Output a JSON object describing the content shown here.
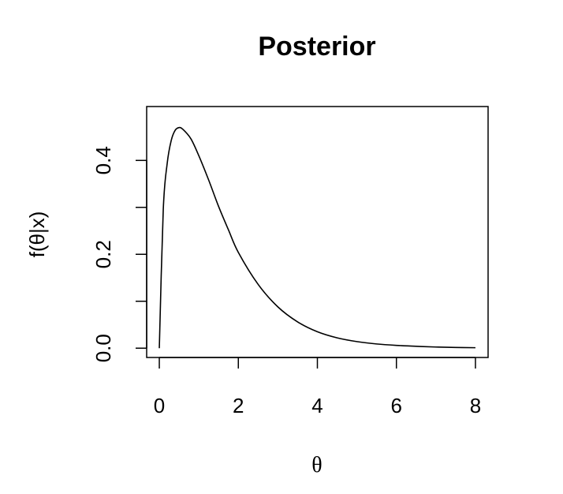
{
  "chart_data": {
    "type": "line",
    "title": "Posterior",
    "xlabel": "θ",
    "ylabel": "f(θ|x)",
    "xlim": [
      -0.32,
      8.32
    ],
    "ylim": [
      -0.0198,
      0.5148
    ],
    "x_ticks": [
      0,
      2,
      4,
      6,
      8
    ],
    "x_tick_labels": [
      "0",
      "2",
      "4",
      "6",
      "8"
    ],
    "y_ticks": [
      0.0,
      0.1,
      0.2,
      0.3,
      0.4
    ],
    "y_tick_labels": [
      "0.0",
      "",
      "0.2",
      "",
      "0.4"
    ],
    "grid": false,
    "series": [
      {
        "x": [
          0,
          0.1,
          0.2,
          0.3,
          0.4,
          0.5,
          0.6,
          0.8,
          1.0,
          1.25,
          1.5,
          1.75,
          2.0,
          2.5,
          3.0,
          3.5,
          4.0,
          4.5,
          5.0,
          5.5,
          6.0,
          6.5,
          7.0,
          7.5,
          8.0
        ],
        "y": [
          0.0,
          0.295,
          0.394,
          0.442,
          0.464,
          0.47,
          0.466,
          0.446,
          0.41,
          0.358,
          0.302,
          0.252,
          0.204,
          0.136,
          0.088,
          0.056,
          0.035,
          0.022,
          0.014,
          0.009,
          0.006,
          0.004,
          0.0025,
          0.0015,
          0.001
        ]
      }
    ]
  }
}
